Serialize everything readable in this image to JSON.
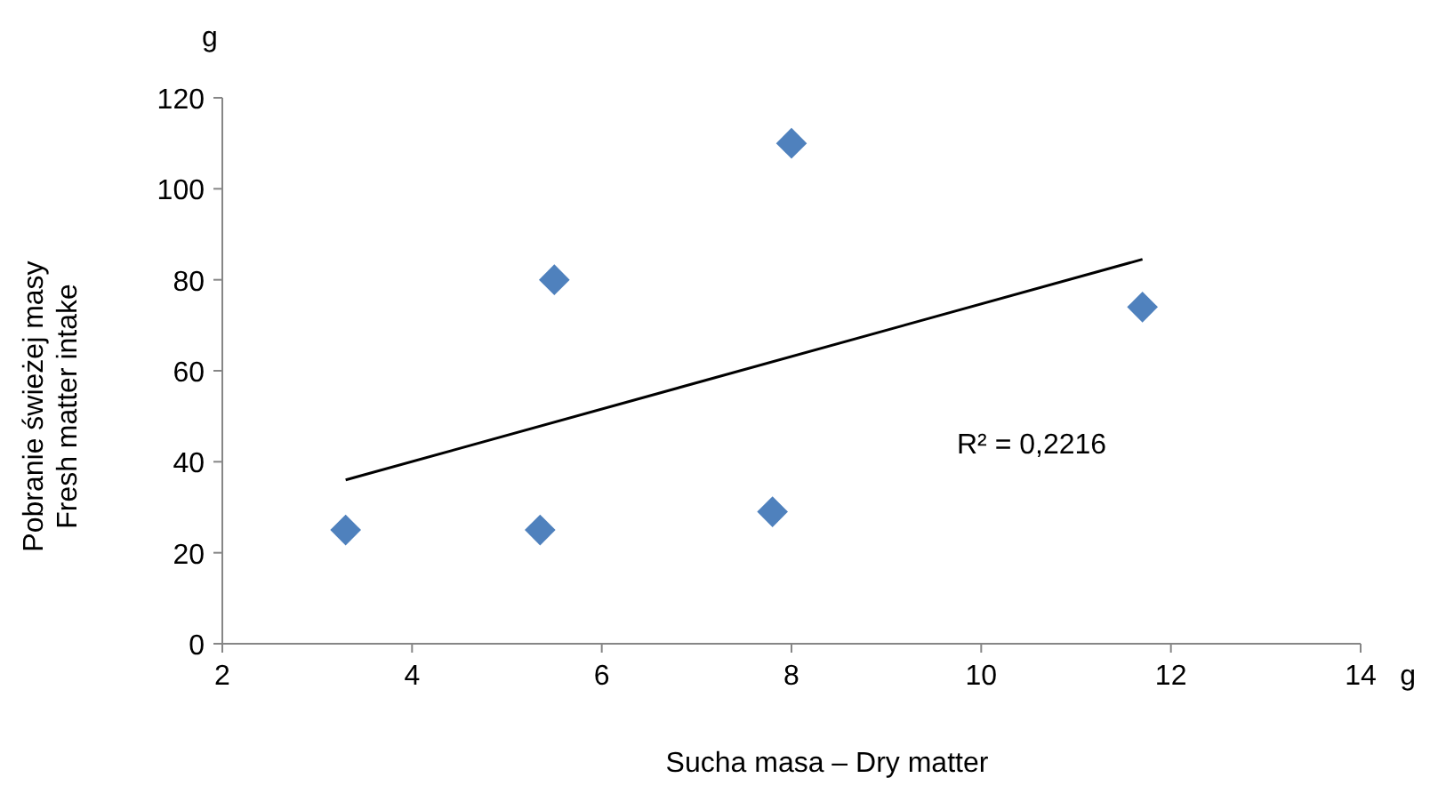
{
  "chart_data": {
    "type": "scatter",
    "xlabel": "Sucha masa – Dry matter",
    "ylabel": "Pobranie świeżej masy\nFresh matter intake",
    "xlim": [
      2,
      14
    ],
    "xticks": [
      2,
      4,
      6,
      8,
      10,
      12,
      14
    ],
    "ylim": [
      0,
      120
    ],
    "yticks": [
      0,
      20,
      40,
      60,
      80,
      100,
      120
    ],
    "grid": false,
    "series": [
      {
        "color": "#4f81bd",
        "marker": "diamond",
        "x": [
          3.3,
          5.35,
          5.5,
          7.8,
          8.0,
          11.7
        ],
        "values": [
          25,
          25,
          80,
          29,
          110,
          74
        ]
      },
      {
        "type": "line",
        "color": "#000000",
        "x": [
          3.3,
          11.7
        ],
        "values": [
          36,
          84.5
        ]
      }
    ],
    "annotations": [
      "g",
      "g",
      "R² = 0,2216"
    ]
  }
}
